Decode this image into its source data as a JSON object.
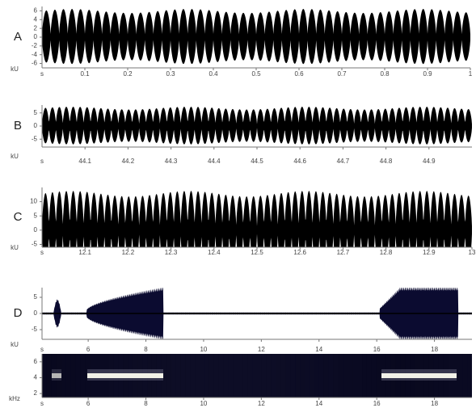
{
  "chart_data": [
    {
      "type": "waveform",
      "label": "A",
      "ylabel": "kU",
      "xlabel": "s",
      "xlim": [
        0,
        1
      ],
      "xticks": [
        0.1,
        0.2,
        0.3,
        0.4,
        0.5,
        0.6,
        0.7,
        0.8,
        0.9,
        1
      ],
      "ylim": [
        -7,
        7
      ],
      "yticks": [
        6,
        4,
        2,
        0,
        -2,
        -4,
        -6
      ]
    },
    {
      "type": "waveform",
      "label": "B",
      "ylabel": "kU",
      "xlabel": "s",
      "xlim": [
        44,
        45
      ],
      "xticks": [
        44.1,
        44.2,
        44.3,
        44.4,
        44.5,
        44.6,
        44.7,
        44.8,
        44.9
      ],
      "ylim": [
        -8,
        8
      ],
      "yticks": [
        5,
        0,
        -5
      ]
    },
    {
      "type": "waveform",
      "label": "C",
      "ylabel": "kU",
      "xlabel": "s",
      "xlim": [
        12,
        13
      ],
      "xticks": [
        12.1,
        12.2,
        12.3,
        12.4,
        12.5,
        12.6,
        12.7,
        12.8,
        12.9,
        13
      ],
      "ylim": [
        -6,
        15
      ],
      "yticks": [
        10,
        5,
        0,
        -5
      ]
    },
    {
      "type": "waveform",
      "label": "D",
      "ylabel": "kU",
      "xlabel": "s",
      "xlim": [
        4.4,
        19.3
      ],
      "xticks": [
        6,
        8,
        10,
        12,
        14,
        16,
        18
      ],
      "ylim": [
        -8,
        8
      ],
      "yticks": [
        5,
        0,
        -5
      ]
    },
    {
      "type": "spectrogram",
      "ylabel": "kHz",
      "xlabel": "s",
      "xlim": [
        4.4,
        19.3
      ],
      "xticks": [
        6,
        8,
        10,
        12,
        14,
        16,
        18
      ],
      "ylim": [
        1.5,
        7
      ],
      "yticks": [
        6,
        4,
        2
      ]
    }
  ]
}
